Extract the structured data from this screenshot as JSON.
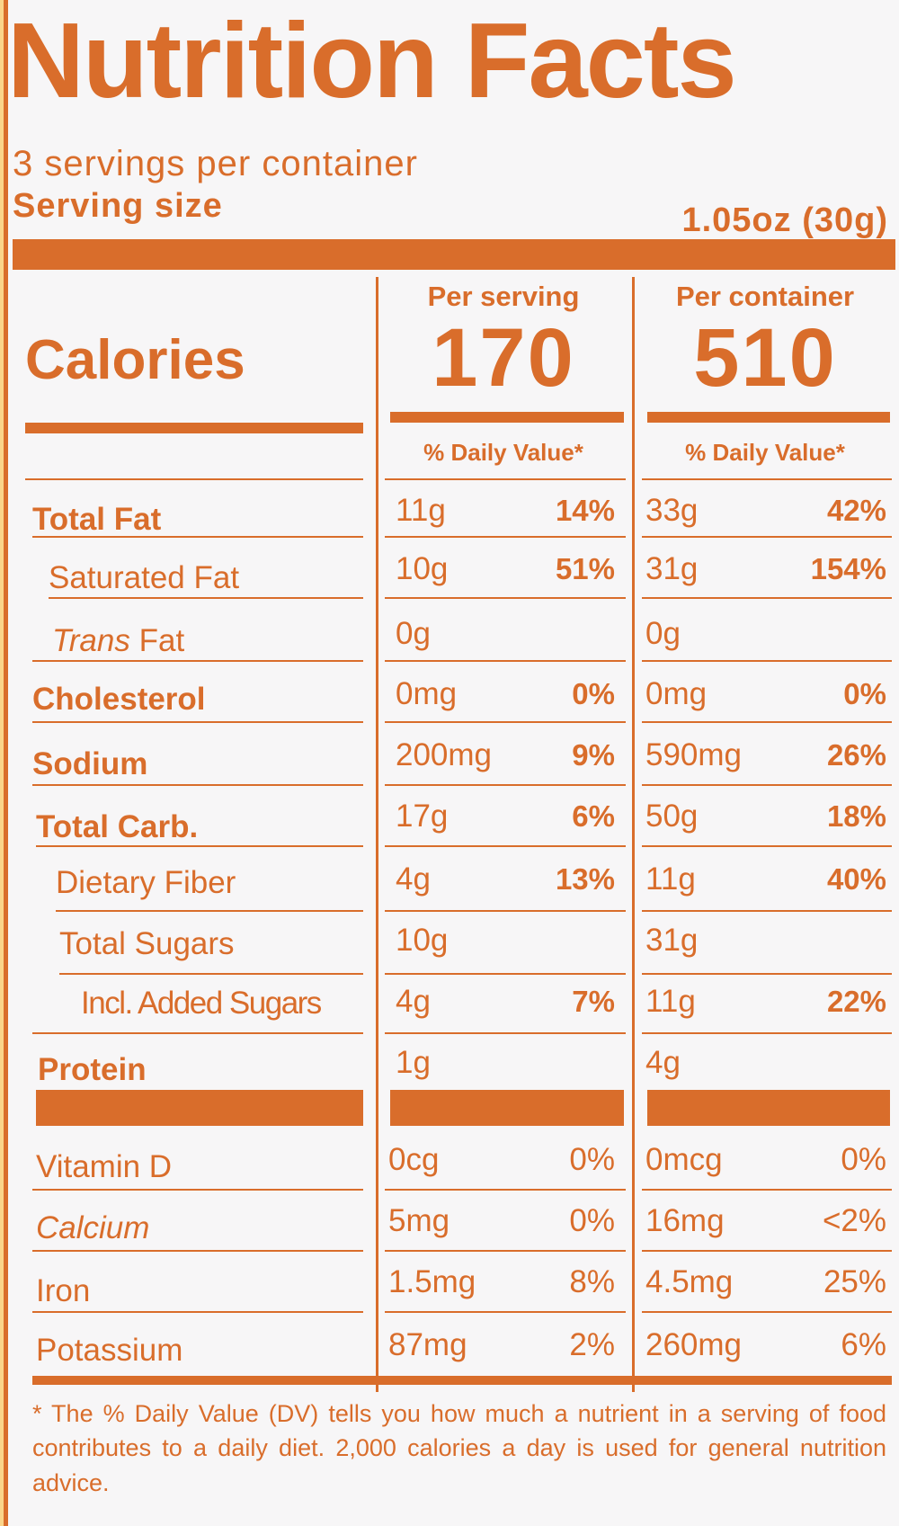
{
  "title": "Nutrition Facts",
  "servings": "3 servings per container",
  "serving_size_label": "Serving size",
  "serving_size_value": "1.05oz (30g)",
  "per_serving_label": "Per serving",
  "per_container_label": "Per container",
  "calories_label": "Calories",
  "calories_serving": "170",
  "calories_container": "510",
  "dv_header": "% Daily Value*",
  "rows": [
    {
      "label": "Total Fat",
      "s_amt": "11g",
      "s_pct": "14%",
      "c_amt": "33g",
      "c_pct": "42%"
    },
    {
      "label": "Saturated Fat",
      "s_amt": "10g",
      "s_pct": "51%",
      "c_amt": "31g",
      "c_pct": "154%"
    },
    {
      "label_i": "Trans",
      "label_rest": " Fat",
      "s_amt": "0g",
      "s_pct": "",
      "c_amt": "0g",
      "c_pct": ""
    },
    {
      "label": "Cholesterol",
      "s_amt": "0mg",
      "s_pct": "0%",
      "c_amt": "0mg",
      "c_pct": "0%"
    },
    {
      "label": "Sodium",
      "s_amt": "200mg",
      "s_pct": "9%",
      "c_amt": "590mg",
      "c_pct": "26%"
    },
    {
      "label": "Total Carb.",
      "s_amt": "17g",
      "s_pct": "6%",
      "c_amt": "50g",
      "c_pct": "18%"
    },
    {
      "label": "Dietary Fiber",
      "s_amt": "4g",
      "s_pct": "13%",
      "c_amt": "11g",
      "c_pct": "40%"
    },
    {
      "label": "Total Sugars",
      "s_amt": "10g",
      "s_pct": "",
      "c_amt": "31g",
      "c_pct": ""
    },
    {
      "label": "Incl. Added Sugars",
      "s_amt": "4g",
      "s_pct": "7%",
      "c_amt": "11g",
      "c_pct": "22%"
    },
    {
      "label": "Protein",
      "s_amt": "1g",
      "s_pct": "",
      "c_amt": "4g",
      "c_pct": ""
    }
  ],
  "vitamins": [
    {
      "label": "Vitamin D",
      "s_amt": "0cg",
      "s_pct": "0%",
      "c_amt": "0mcg",
      "c_pct": "0%"
    },
    {
      "label": "Calcium",
      "s_amt": "5mg",
      "s_pct": "0%",
      "c_amt": "16mg",
      "c_pct": "<2%"
    },
    {
      "label": "Iron",
      "s_amt": "1.5mg",
      "s_pct": "8%",
      "c_amt": "4.5mg",
      "c_pct": "25%"
    },
    {
      "label": "Potassium",
      "s_amt": "87mg",
      "s_pct": "2%",
      "c_amt": "260mg",
      "c_pct": "6%"
    }
  ],
  "footnote": "* The % Daily Value (DV) tells you how much a nutrient in a serving of food contributes to a daily diet. 2,000 calories a day is used for general nutrition advice.",
  "colors": {
    "ink": "#d96d2b",
    "paper": "#f7f6f7",
    "background": "#fbd58a"
  }
}
